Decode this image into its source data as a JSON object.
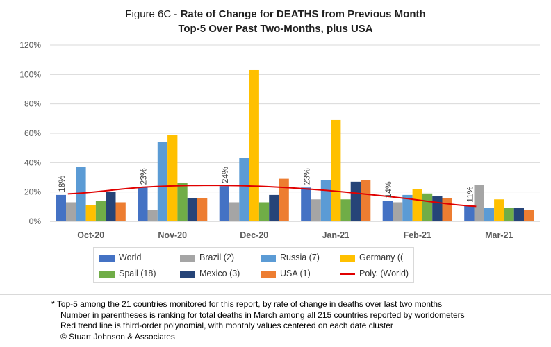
{
  "chart_data": {
    "type": "bar",
    "title_prefix": "Figure 6C - ",
    "title_bold": "Rate of Change for DEATHS from Previous Month",
    "subtitle": "Top-5 Over Past Two-Months, plus USA",
    "categories": [
      "Oct-20",
      "Nov-20",
      "Dec-20",
      "Jan-21",
      "Feb-21",
      "Mar-21"
    ],
    "ylim": [
      0,
      120
    ],
    "yticks": [
      "0%",
      "20%",
      "40%",
      "60%",
      "80%",
      "100%",
      "120%"
    ],
    "grid": true,
    "legend_position": "bottom",
    "series": [
      {
        "name": "World",
        "color": "#4472c4",
        "values": [
          18,
          23,
          24,
          23,
          14,
          11
        ]
      },
      {
        "name": "Brazil (2)",
        "color": "#a5a5a5",
        "values": [
          13,
          8,
          13,
          15,
          13,
          25
        ]
      },
      {
        "name": "Russia (7)",
        "color": "#5b9bd5",
        "values": [
          37,
          54,
          43,
          28,
          18,
          9
        ]
      },
      {
        "name": "Germany ((",
        "color": "#ffc000",
        "values": [
          11,
          59,
          103,
          69,
          22,
          15
        ]
      },
      {
        "name": "Spail (18)",
        "color": "#70ad47",
        "values": [
          14,
          26,
          13,
          15,
          19,
          9
        ]
      },
      {
        "name": "Mexico (3)",
        "color": "#264478",
        "values": [
          20,
          16,
          18,
          27,
          17,
          9
        ]
      },
      {
        "name": "USA (1)",
        "color": "#ed7d31",
        "values": [
          13,
          16,
          29,
          28,
          16,
          8
        ]
      }
    ],
    "data_labels": [
      "18%",
      "23%",
      "24%",
      "23%",
      "14%",
      "11%"
    ],
    "trendline": {
      "name": "Poly. (World)",
      "color": "#e00000",
      "values": [
        18.7,
        23.5,
        24.4,
        21.8,
        16.5,
        10.2
      ]
    }
  },
  "notes": [
    "* Top-5 among the 21 countries monitored for this report, by rate of change in deaths over last two months",
    "Number in parentheses is ranking for total deaths in March among all 215 countries reported by worldometers",
    "Red trend line is third-order polynomial, with monthly values centered on each date cluster",
    "© Stuart Johnson & Associates"
  ]
}
